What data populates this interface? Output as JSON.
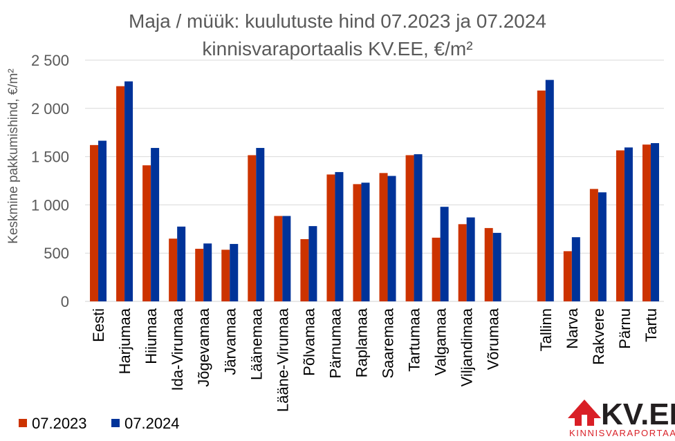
{
  "chart_data": {
    "type": "bar",
    "title_line1": "Maja / müük: kuulutuste hind 07.2023 ja 07.2024",
    "title_line2": "kinnisvaraportaalis KV.EE, €/m²",
    "ylabel": "Keskmine pakkumishind, €/m²",
    "ylim": [
      0,
      2500
    ],
    "yticks": [
      0,
      500,
      1000,
      1500,
      2000,
      2500
    ],
    "ytick_labels": [
      "0",
      "500",
      "1 000",
      "1 500",
      "2 000",
      "2 500"
    ],
    "grid": true,
    "legend_position": "bottom-left",
    "categories": [
      "Eesti",
      "Harjumaa",
      "Hiiumaa",
      "Ida-Virumaa",
      "Jõgevamaa",
      "Järvamaa",
      "Läänemaa",
      "Lääne-Virumaa",
      "Põlvamaa",
      "Pärnumaa",
      "Raplamaa",
      "Saaremaa",
      "Tartumaa",
      "Valgamaa",
      "Viljandimaa",
      "Võrumaa",
      "",
      "Tallinn",
      "Narva",
      "Rakvere",
      "Pärnu",
      "Tartu"
    ],
    "series": [
      {
        "name": "07.2023",
        "color": "#cc3300",
        "values": [
          1620,
          2230,
          1410,
          650,
          545,
          535,
          1515,
          885,
          645,
          1315,
          1215,
          1330,
          1515,
          660,
          800,
          760,
          null,
          2185,
          520,
          1165,
          1565,
          1625
        ]
      },
      {
        "name": "07.2024",
        "color": "#003399",
        "values": [
          1665,
          2280,
          1590,
          775,
          600,
          595,
          1590,
          885,
          780,
          1340,
          1230,
          1300,
          1525,
          980,
          870,
          710,
          null,
          2295,
          665,
          1130,
          1595,
          1640
        ]
      }
    ]
  },
  "logo": {
    "brand": "KV.EE",
    "tagline": "KINNISVARAPORTAAL",
    "icon": "house-icon",
    "color": "#d91f26"
  }
}
